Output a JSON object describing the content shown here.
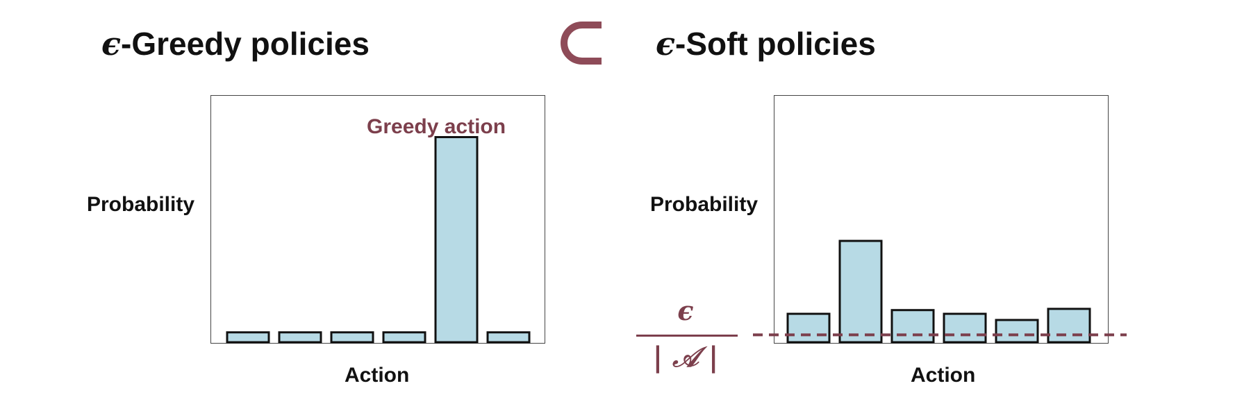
{
  "colors": {
    "bar_fill": "#b7dae5",
    "bar_stroke": "#111111",
    "accent": "#7c3f4c"
  },
  "header": {
    "left_title_symbol": "ϵ",
    "left_title_text": "-Greedy policies",
    "right_title_symbol": "ϵ",
    "right_title_text": "-Soft policies",
    "relation_symbol": "⊂"
  },
  "chart_data": [
    {
      "type": "bar",
      "title": "ϵ-Greedy policies",
      "xlabel": "Action",
      "ylabel": "Probability",
      "categories": [
        "",
        "",
        "",
        "",
        "",
        ""
      ],
      "values": [
        0.04,
        0.04,
        0.04,
        0.04,
        0.83,
        0.04
      ],
      "ylim": [
        0,
        1
      ],
      "grid": false,
      "annotations": [
        {
          "text": "Greedy action",
          "target_index": 4
        }
      ]
    },
    {
      "type": "bar",
      "title": "ϵ-Soft policies",
      "xlabel": "Action",
      "ylabel": "Probability",
      "categories": [
        "",
        "",
        "",
        "",
        "",
        ""
      ],
      "values": [
        0.115,
        0.41,
        0.13,
        0.115,
        0.09,
        0.135
      ],
      "ylim": [
        0,
        1
      ],
      "grid": false,
      "reference_line": {
        "value": 0.03,
        "style": "dashed",
        "label_numerator": "ϵ",
        "label_denominator": "| 𝒜 |"
      }
    }
  ]
}
